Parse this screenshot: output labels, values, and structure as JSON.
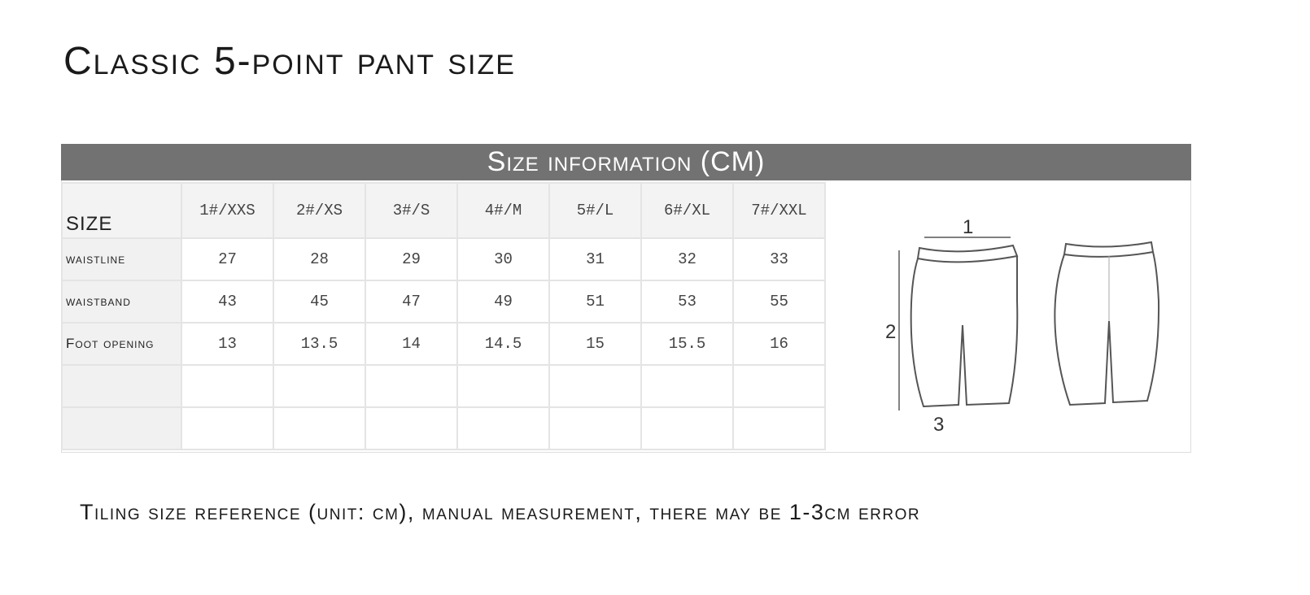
{
  "title": "Classic 5-point pant size",
  "band_title": "Size information (CM)",
  "table": {
    "header_label": "SIZE",
    "sizes": [
      "1#/XXS",
      "2#/XS",
      "3#/S",
      "4#/M",
      "5#/L",
      "6#/XL",
      "7#/XXL"
    ],
    "rows": [
      {
        "label": "waistline",
        "values": [
          "27",
          "28",
          "29",
          "30",
          "31",
          "32",
          "33"
        ]
      },
      {
        "label": "waistband",
        "values": [
          "43",
          "45",
          "47",
          "49",
          "51",
          "53",
          "55"
        ]
      },
      {
        "label": "Foot opening",
        "values": [
          "13",
          "13.5",
          "14",
          "14.5",
          "15",
          "15.5",
          "16"
        ]
      },
      {
        "label": "",
        "values": [
          "",
          "",
          "",
          "",
          "",
          "",
          ""
        ]
      },
      {
        "label": "",
        "values": [
          "",
          "",
          "",
          "",
          "",
          "",
          ""
        ]
      }
    ]
  },
  "diagram": {
    "labels": [
      "1",
      "2",
      "3"
    ]
  },
  "footer": "Tiling size reference (unit: cm), manual measurement, there may be 1-3cm error"
}
